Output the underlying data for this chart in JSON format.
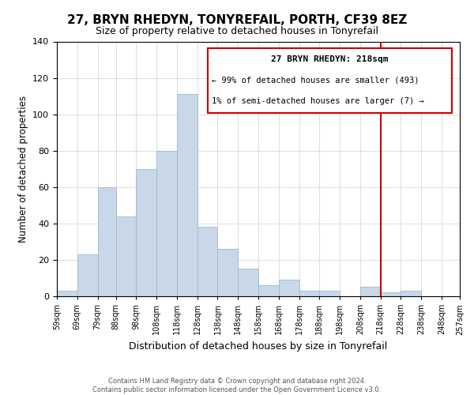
{
  "title": "27, BRYN RHEDYN, TONYREFAIL, PORTH, CF39 8EZ",
  "subtitle": "Size of property relative to detached houses in Tonyrefail",
  "xlabel": "Distribution of detached houses by size in Tonyrefail",
  "ylabel": "Number of detached properties",
  "bin_edges": [
    59,
    69,
    79,
    88,
    98,
    108,
    118,
    128,
    138,
    148,
    158,
    168,
    178,
    188,
    198,
    208,
    218,
    228,
    238,
    248,
    257
  ],
  "bar_heights": [
    3,
    23,
    60,
    44,
    70,
    80,
    111,
    38,
    26,
    15,
    6,
    9,
    3,
    3,
    0,
    5,
    2,
    3,
    0,
    0
  ],
  "bar_color": "#c8d8e8",
  "bar_edgecolor": "#a0b8cc",
  "vline_x": 218,
  "vline_color": "#cc0000",
  "ylim": [
    0,
    140
  ],
  "yticks": [
    0,
    20,
    40,
    60,
    80,
    100,
    120,
    140
  ],
  "annotation_title": "27 BRYN RHEDYN: 218sqm",
  "annotation_line1": "← 99% of detached houses are smaller (493)",
  "annotation_line2": "1% of semi-detached houses are larger (7) →",
  "annotation_box_color": "#cc0000",
  "footer_line1": "Contains HM Land Registry data © Crown copyright and database right 2024.",
  "footer_line2": "Contains public sector information licensed under the Open Government Licence v3.0.",
  "background_color": "#ffffff",
  "grid_color": "#d0d0d0"
}
